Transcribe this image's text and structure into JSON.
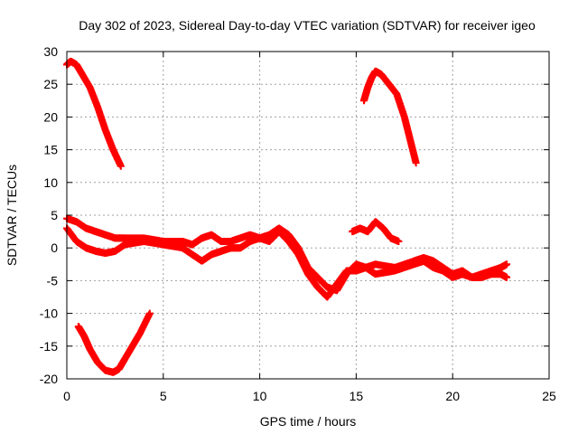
{
  "chart_data": {
    "type": "scatter",
    "title": "Day 302 of 2023, Sidereal Day-to-day VTEC variation (SDTVAR) for receiver igeo",
    "xlabel": "GPS time / hours",
    "ylabel": "SDTVAR / TECUs",
    "xlim": [
      0,
      25
    ],
    "ylim": [
      -20,
      30
    ],
    "xticks": [
      "0",
      "5",
      "10",
      "15",
      "20",
      "25"
    ],
    "yticks": [
      "-20",
      "-15",
      "-10",
      "-5",
      "0",
      "5",
      "10",
      "15",
      "20",
      "25",
      "30"
    ],
    "grid": true,
    "legend": "none",
    "series_color": "#ff0000",
    "series": [
      {
        "name": "arc-top-left",
        "x": [
          0.0,
          0.2,
          0.5,
          0.8,
          1.2,
          1.6,
          2.0,
          2.4,
          2.8
        ],
        "y": [
          28.0,
          28.5,
          28.0,
          26.5,
          24.5,
          21.5,
          18.0,
          15.0,
          12.5
        ]
      },
      {
        "name": "arc-top-right",
        "x": [
          15.4,
          15.6,
          15.8,
          16.0,
          16.3,
          16.7,
          17.1,
          17.5,
          17.8,
          18.1
        ],
        "y": [
          22.5,
          24.5,
          26.0,
          27.0,
          26.5,
          25.0,
          23.5,
          20.0,
          16.5,
          13.0
        ]
      },
      {
        "name": "arc-bottom-left",
        "x": [
          0.6,
          0.9,
          1.2,
          1.6,
          2.0,
          2.4,
          2.7,
          3.0,
          3.4,
          3.8,
          4.3
        ],
        "y": [
          -12.0,
          -13.5,
          -15.5,
          -17.5,
          -18.7,
          -19.0,
          -18.5,
          -17.0,
          -15.0,
          -13.0,
          -10.0
        ]
      },
      {
        "name": "band-main-a",
        "x": [
          0.0,
          0.5,
          1.0,
          1.5,
          2.0,
          2.5,
          3.0,
          4.0,
          5.0,
          6.0,
          6.5,
          7.0,
          7.5,
          8.0,
          8.5,
          9.0,
          9.5,
          10.0,
          10.5,
          11.0,
          11.5,
          12.0,
          12.5,
          13.0,
          13.5,
          14.0,
          14.5,
          15.0,
          15.5,
          16.0,
          17.0,
          18.0,
          18.5,
          19.0,
          19.5,
          20.0,
          20.5,
          21.0,
          21.5,
          22.0,
          22.5,
          22.8
        ],
        "y": [
          4.5,
          4.0,
          3.0,
          2.5,
          2.0,
          1.5,
          1.5,
          1.5,
          1.0,
          1.0,
          0.5,
          1.5,
          2.0,
          1.0,
          1.0,
          1.5,
          2.0,
          1.5,
          2.0,
          3.0,
          2.0,
          0.0,
          -3.0,
          -4.5,
          -6.0,
          -6.5,
          -4.0,
          -2.5,
          -3.0,
          -2.5,
          -3.0,
          -2.0,
          -1.5,
          -2.0,
          -3.0,
          -4.0,
          -3.5,
          -4.5,
          -4.0,
          -3.5,
          -3.0,
          -2.5
        ]
      },
      {
        "name": "band-main-b",
        "x": [
          0.0,
          0.5,
          1.0,
          1.5,
          2.0,
          2.5,
          3.0,
          4.0,
          5.0,
          6.0,
          6.5,
          7.0,
          7.5,
          8.0,
          8.5,
          9.0,
          9.5,
          10.0,
          10.5,
          11.0,
          11.5,
          12.0,
          12.5,
          13.0,
          13.5,
          14.0,
          14.5,
          15.0,
          15.5,
          16.0,
          17.0,
          18.0,
          18.5,
          19.0,
          19.5,
          20.0,
          20.5,
          21.0,
          21.5,
          22.0,
          22.5,
          22.8
        ],
        "y": [
          3.0,
          1.0,
          0.0,
          -0.5,
          -0.8,
          -0.5,
          0.5,
          1.0,
          0.5,
          0.0,
          -1.0,
          -2.0,
          -1.0,
          -0.5,
          0.0,
          0.0,
          1.0,
          1.5,
          1.0,
          2.5,
          1.0,
          -1.0,
          -4.0,
          -6.0,
          -7.5,
          -5.5,
          -3.5,
          -3.5,
          -3.0,
          -4.0,
          -3.5,
          -2.5,
          -2.0,
          -3.0,
          -3.5,
          -4.5,
          -4.0,
          -4.5,
          -4.5,
          -4.0,
          -4.0,
          -4.5
        ]
      },
      {
        "name": "band-right-upper",
        "x": [
          14.8,
          15.2,
          15.6,
          16.0,
          16.4,
          16.8,
          17.2
        ],
        "y": [
          2.5,
          3.0,
          2.5,
          4.0,
          3.0,
          1.5,
          1.0
        ]
      }
    ]
  }
}
